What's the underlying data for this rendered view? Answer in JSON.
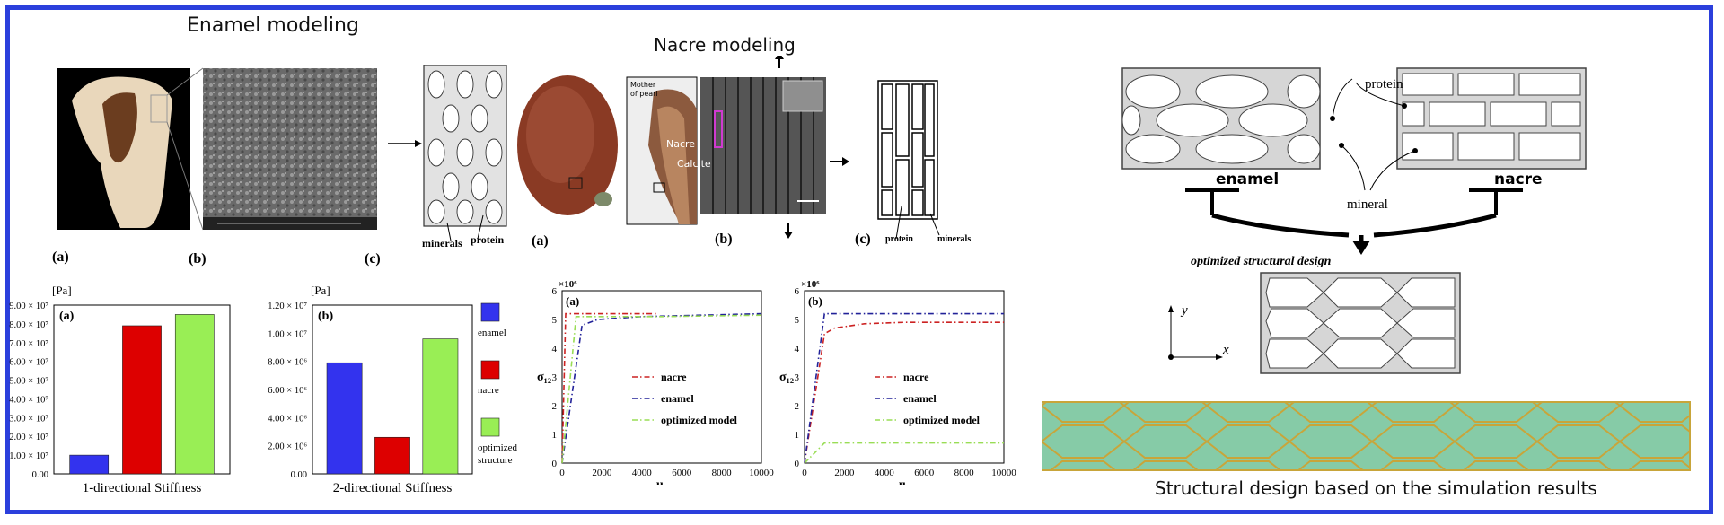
{
  "titles": {
    "enamel_modeling": "Enamel modeling",
    "nacre_modeling": "Nacre modeling",
    "bottom_right": "Structural design based on the simulation results"
  },
  "enamel_panel": {
    "label_a": "(a)",
    "label_b": "(b)",
    "label_c": "(c)",
    "minerals": "minerals",
    "protein": "protein"
  },
  "nacre_panel": {
    "label_a": "(a)",
    "label_b": "(b)",
    "label_c": "(c)",
    "mother": "Mother of pearl",
    "nacre": "Nacre",
    "calcite": "Calcite",
    "protein": "protein",
    "minerals": "minerals"
  },
  "schematic": {
    "protein": "protein",
    "mineral": "mineral",
    "enamel": "enamel",
    "nacre": "nacre",
    "optimized": "optimized structural design",
    "axis_x": "x",
    "axis_y": "y"
  },
  "colors": {
    "frame": "#2b3fdc",
    "enamel": "#3333ee",
    "nacre": "#dd0000",
    "optimized": "#99ee55",
    "sim_fill": "#86cba7",
    "sim_edge": "#c8a53a"
  },
  "chart_data": [
    {
      "type": "bar",
      "panel_label": "(a)",
      "unit": "[Pa]",
      "xlabel": "1-directional Stiffness",
      "categories": [
        "enamel",
        "nacre",
        "optimized structure"
      ],
      "values": [
        10000000,
        79000000,
        85000000
      ],
      "ylim": [
        0,
        90000000
      ],
      "yticks": [
        "0.00",
        "1.00 × 10⁷",
        "2.00 × 10⁷",
        "3.00 × 10⁷",
        "4.00 × 10⁷",
        "5.00 × 10⁷",
        "6.00 × 10⁷",
        "7.00 × 10⁷",
        "8.00 × 10⁷",
        "9.00 × 10⁷"
      ]
    },
    {
      "type": "bar",
      "panel_label": "(b)",
      "unit": "[Pa]",
      "xlabel": "2-directional Stiffness",
      "categories": [
        "enamel",
        "nacre",
        "optimized structure"
      ],
      "values": [
        7900000,
        2600000,
        9600000
      ],
      "ylim": [
        0,
        12000000
      ],
      "yticks": [
        "0.00",
        "2.00 × 10⁶",
        "4.00 × 10⁶",
        "6.00 × 10⁶",
        "8.00 × 10⁶",
        "1.00 × 10⁷",
        "1.20 × 10⁷"
      ],
      "legend": [
        "enamel",
        "nacre",
        "optimized structure"
      ]
    },
    {
      "type": "line",
      "panel_label": "(a)",
      "multiplier": "×10⁶",
      "ylabel": "σ₁₂",
      "xlabel": "u₁",
      "xlim": [
        0,
        10000
      ],
      "ylim": [
        0,
        6
      ],
      "xticks": [
        "0",
        "2000",
        "4000",
        "6000",
        "8000",
        "10000"
      ],
      "yticks": [
        "0",
        "1",
        "2",
        "3",
        "4",
        "5",
        "6"
      ],
      "series": [
        {
          "name": "nacre",
          "color": "#cc2222",
          "x": [
            0,
            180,
            4800
          ],
          "y": [
            0,
            5.2,
            5.2
          ]
        },
        {
          "name": "enamel",
          "color": "#222299",
          "x": [
            0,
            1000,
            1800,
            4000,
            10000
          ],
          "y": [
            0,
            4.8,
            5.0,
            5.1,
            5.2
          ]
        },
        {
          "name": "optimized model",
          "color": "#99dd55",
          "x": [
            0,
            700,
            2000,
            5000,
            10000
          ],
          "y": [
            0,
            5.1,
            5.1,
            5.1,
            5.15
          ]
        }
      ]
    },
    {
      "type": "line",
      "panel_label": "(b)",
      "multiplier": "×10⁶",
      "ylabel": "σ₁₂",
      "xlabel": "u₂",
      "xlim": [
        0,
        10000
      ],
      "ylim": [
        0,
        6
      ],
      "xticks": [
        "0",
        "2000",
        "4000",
        "6000",
        "8000",
        "10000"
      ],
      "yticks": [
        "0",
        "1",
        "2",
        "3",
        "4",
        "5",
        "6"
      ],
      "series": [
        {
          "name": "nacre",
          "color": "#cc2222",
          "x": [
            0,
            1000,
            1500,
            3000,
            5000,
            10000
          ],
          "y": [
            0,
            4.5,
            4.7,
            4.85,
            4.9,
            4.9
          ]
        },
        {
          "name": "enamel",
          "color": "#222299",
          "x": [
            0,
            1000,
            10000
          ],
          "y": [
            0,
            5.2,
            5.2
          ]
        },
        {
          "name": "optimized model",
          "color": "#99dd55",
          "x": [
            0,
            1000,
            10000
          ],
          "y": [
            0,
            0.7,
            0.7
          ]
        }
      ]
    }
  ]
}
